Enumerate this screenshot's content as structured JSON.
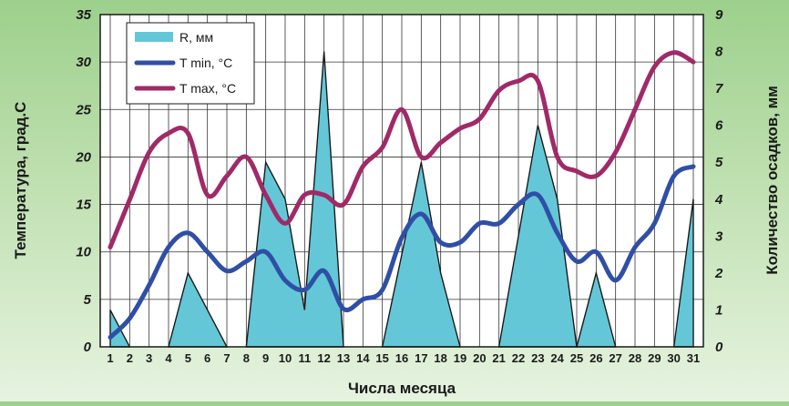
{
  "chart_data": {
    "type": "line",
    "xlabel": "Числа месяца",
    "ylabel_left": "Температура, град.С",
    "ylabel_right": "Количество осадков, мм",
    "x": [
      1,
      2,
      3,
      4,
      5,
      6,
      7,
      8,
      9,
      10,
      11,
      12,
      13,
      14,
      15,
      16,
      17,
      18,
      19,
      20,
      21,
      22,
      23,
      24,
      25,
      26,
      27,
      28,
      29,
      30,
      31
    ],
    "ylim_left": [
      0,
      35
    ],
    "yticks_left": [
      0,
      5,
      10,
      15,
      20,
      25,
      30,
      35
    ],
    "ylim_right": [
      0,
      9
    ],
    "yticks_right": [
      0,
      1,
      2,
      3,
      4,
      5,
      6,
      7,
      8,
      9
    ],
    "grid": true,
    "legend": "top-left",
    "series": [
      {
        "name": "R, мм",
        "kind": "area",
        "axis": "right",
        "color": "#63c7d8",
        "values": [
          1.0,
          0,
          0,
          0,
          2.0,
          1.0,
          0,
          0,
          5.0,
          4.0,
          1.0,
          8.0,
          0,
          0,
          0,
          2.5,
          5.0,
          2.0,
          0,
          0,
          0,
          3.0,
          6.0,
          4.0,
          0,
          2.0,
          0,
          0,
          0,
          0,
          4.0
        ]
      },
      {
        "name": "T min, °C",
        "kind": "line",
        "axis": "left",
        "color": "#2f4fa6",
        "values": [
          1.0,
          3.0,
          6.5,
          10.5,
          12.0,
          10.0,
          8.0,
          9.0,
          10.0,
          7.0,
          6.0,
          8.0,
          4.0,
          5.0,
          6.0,
          11.5,
          14.0,
          11.0,
          11.0,
          13.0,
          13.0,
          15.0,
          16.0,
          12.0,
          9.0,
          10.0,
          7.0,
          10.5,
          13.0,
          18.0,
          19.0
        ]
      },
      {
        "name": "T max, °C",
        "kind": "line",
        "axis": "left",
        "color": "#a02a68",
        "values": [
          10.5,
          15.5,
          20.5,
          22.5,
          22.5,
          16.0,
          18.0,
          20.0,
          16.0,
          13.0,
          16.0,
          16.0,
          15.0,
          19.0,
          21.0,
          25.0,
          20.0,
          21.5,
          23.0,
          24.0,
          27.0,
          28.0,
          28.0,
          20.0,
          18.5,
          18.0,
          20.5,
          25.0,
          29.5,
          31.0,
          30.0
        ]
      }
    ]
  }
}
